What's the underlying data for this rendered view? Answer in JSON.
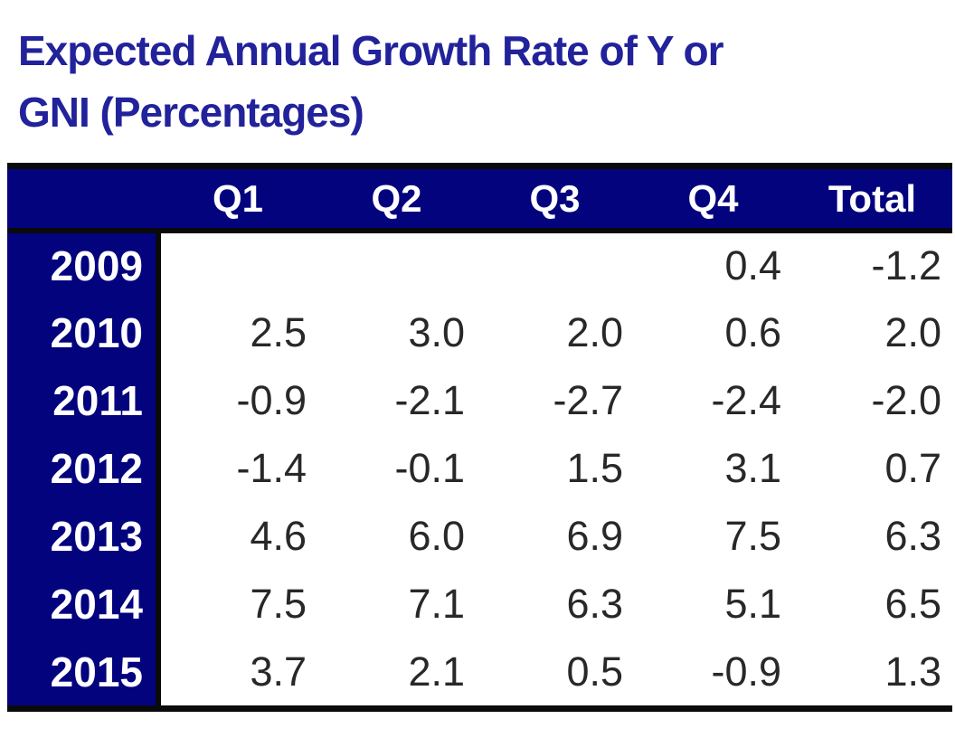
{
  "title": {
    "line1": "Expected Annual Growth Rate of Y or",
    "line2": "GNI (Percentages)"
  },
  "table": {
    "columns": [
      "",
      "Q1",
      "Q2",
      "Q3",
      "Q4",
      "Total"
    ],
    "rows": [
      {
        "year": "2009",
        "values": [
          "",
          "",
          "",
          "0.4",
          "-1.2"
        ]
      },
      {
        "year": "2010",
        "values": [
          "2.5",
          "3.0",
          "2.0",
          "0.6",
          "2.0"
        ]
      },
      {
        "year": "2011",
        "values": [
          "-0.9",
          "-2.1",
          "-2.7",
          "-2.4",
          "-2.0"
        ]
      },
      {
        "year": "2012",
        "values": [
          "-1.4",
          "-0.1",
          "1.5",
          "3.1",
          "0.7"
        ]
      },
      {
        "year": "2013",
        "values": [
          "4.6",
          "6.0",
          "6.9",
          "7.5",
          "6.3"
        ]
      },
      {
        "year": "2014",
        "values": [
          "7.5",
          "7.1",
          "6.3",
          "5.1",
          "6.5"
        ]
      },
      {
        "year": "2015",
        "values": [
          "3.7",
          "2.1",
          "0.5",
          "-0.9",
          "1.3"
        ]
      }
    ]
  },
  "colors": {
    "header_navy": "#03037E",
    "title_text": "#22229B",
    "value_text": "#282828",
    "border_black": "#0A0A0A",
    "header_text": "#FFFFFF"
  },
  "chart_data": {
    "type": "table",
    "title": "Expected Annual Growth Rate of Y or GNI (Percentages)",
    "categories": [
      "Q1",
      "Q2",
      "Q3",
      "Q4",
      "Total"
    ],
    "row_labels": [
      "2009",
      "2010",
      "2011",
      "2012",
      "2013",
      "2014",
      "2015"
    ],
    "series": [
      {
        "name": "2009",
        "values": [
          null,
          null,
          null,
          0.4,
          -1.2
        ]
      },
      {
        "name": "2010",
        "values": [
          2.5,
          3.0,
          2.0,
          0.6,
          2.0
        ]
      },
      {
        "name": "2011",
        "values": [
          -0.9,
          -2.1,
          -2.7,
          -2.4,
          -2.0
        ]
      },
      {
        "name": "2012",
        "values": [
          -1.4,
          -0.1,
          1.5,
          3.1,
          0.7
        ]
      },
      {
        "name": "2013",
        "values": [
          4.6,
          6.0,
          6.9,
          7.5,
          6.3
        ]
      },
      {
        "name": "2014",
        "values": [
          7.5,
          7.1,
          6.3,
          5.1,
          6.5
        ]
      },
      {
        "name": "2015",
        "values": [
          3.7,
          2.1,
          0.5,
          -0.9,
          1.3
        ]
      }
    ]
  }
}
